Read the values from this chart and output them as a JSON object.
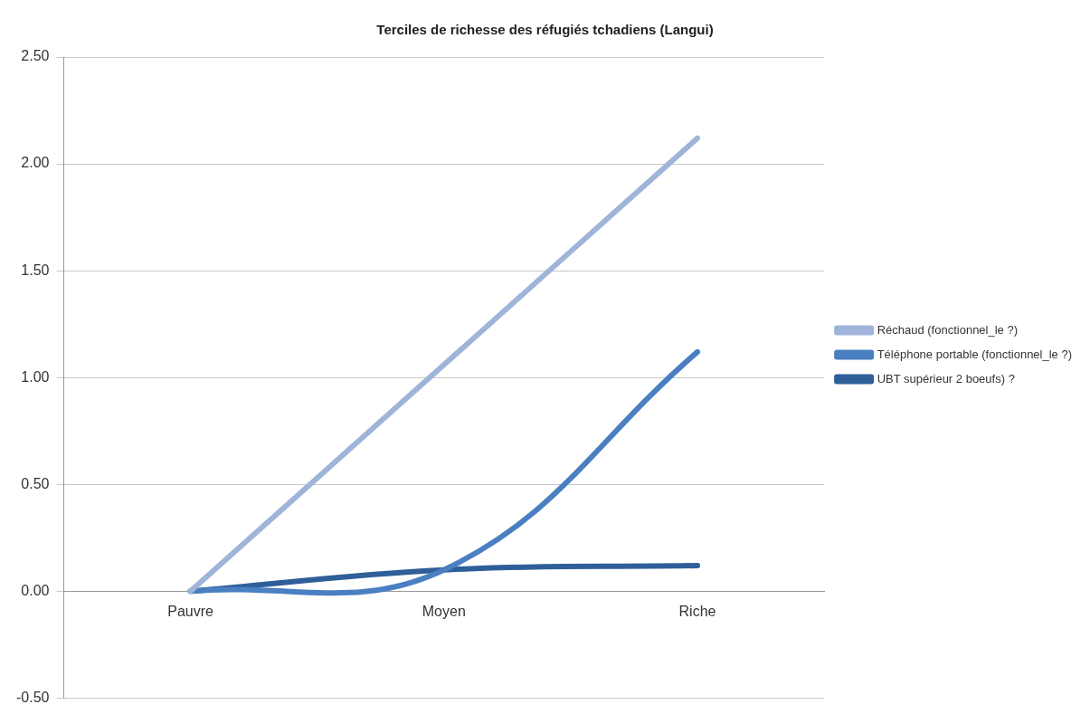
{
  "chart_data": {
    "type": "line",
    "title": "Terciles de richesse des réfugiés tchadiens (Langui)",
    "categories": [
      "Pauvre",
      "Moyen",
      "Riche"
    ],
    "series": [
      {
        "name": "Réchaud (fonctionnel_le ?)",
        "color": "#9fb4d8",
        "values": [
          0,
          1.06,
          2.12
        ]
      },
      {
        "name": "Téléphone portable (fonctionnel_le ?)",
        "color": "#4a7fc1",
        "values": [
          0,
          0.1,
          1.12
        ]
      },
      {
        "name": "UBT supérieur 2 boeufs) ?",
        "color": "#2f5f98",
        "values": [
          0,
          0.1,
          0.12
        ]
      }
    ],
    "ylim": [
      -0.5,
      2.5
    ],
    "yticks": [
      {
        "value": -0.5,
        "label": "-0.50"
      },
      {
        "value": 0,
        "label": "0.00"
      },
      {
        "value": 0.5,
        "label": "0.50"
      },
      {
        "value": 1,
        "label": "1.00"
      },
      {
        "value": 1.5,
        "label": "1.50"
      },
      {
        "value": 2,
        "label": "2.00"
      },
      {
        "value": 2.5,
        "label": "2.50"
      }
    ],
    "grid": "y",
    "legend": "right",
    "marker": "none",
    "line_style": "solid"
  }
}
